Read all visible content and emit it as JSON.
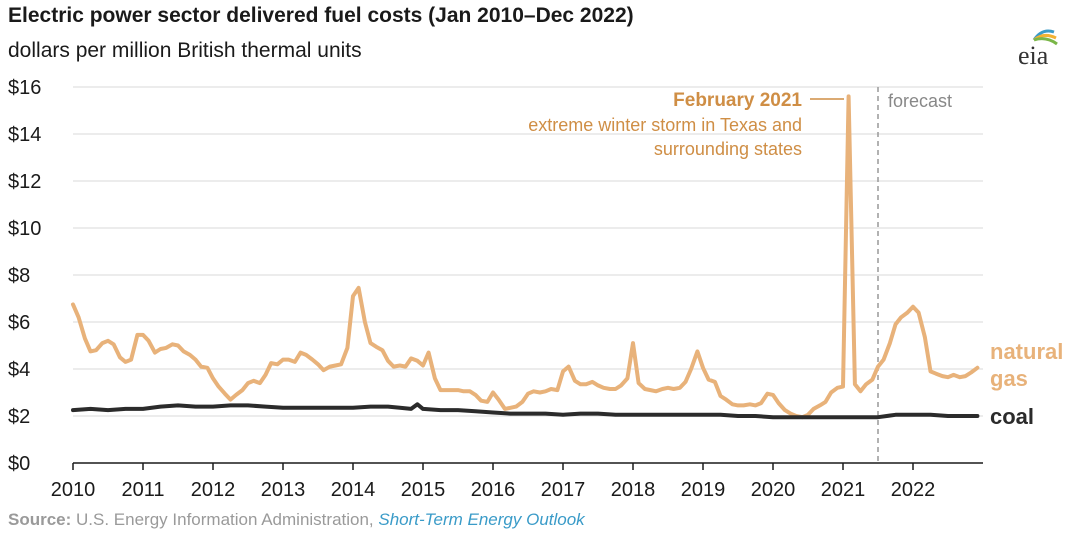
{
  "header": {
    "title": "Electric power sector delivered fuel costs (Jan 2010–Dec 2022)",
    "subtitle": "dollars per million British thermal units"
  },
  "logo": {
    "text": "eia",
    "icon": "eia-logo-icon"
  },
  "source": {
    "label": "Source:",
    "text": " U.S. Energy Information Administration, ",
    "link": "Short-Term Energy Outlook"
  },
  "colors": {
    "natural_gas": "#e8b27a",
    "coal": "#2b2b2b",
    "annotation": "#cf8e45",
    "grid": "#d9d9d9",
    "forecast_line": "#999999",
    "axis": "#1a1a1a"
  },
  "chart_data": {
    "type": "line",
    "ylim": [
      0,
      16
    ],
    "xlim": [
      2010,
      2023
    ],
    "y_ticks": [
      "$0",
      "$2",
      "$4",
      "$6",
      "$8",
      "$10",
      "$12",
      "$14",
      "$16"
    ],
    "x_ticks": [
      "2010",
      "2011",
      "2012",
      "2013",
      "2014",
      "2015",
      "2016",
      "2017",
      "2018",
      "2019",
      "2020",
      "2021",
      "2022"
    ],
    "grid": true,
    "forecast_start": 2021.5,
    "forecast_label": "forecast",
    "annotation": {
      "title": "February 2021",
      "line1": "extreme winter storm in Texas and",
      "line2": "surrounding states",
      "x": 2021.1,
      "y": 15.6
    },
    "series": [
      {
        "name": "natural gas",
        "label_line1": "natural",
        "label_line2": "gas",
        "points": [
          [
            2010.0,
            6.75
          ],
          [
            2010.08,
            6.2
          ],
          [
            2010.17,
            5.3
          ],
          [
            2010.25,
            4.75
          ],
          [
            2010.33,
            4.8
          ],
          [
            2010.42,
            5.1
          ],
          [
            2010.5,
            5.2
          ],
          [
            2010.58,
            5.05
          ],
          [
            2010.67,
            4.5
          ],
          [
            2010.75,
            4.3
          ],
          [
            2010.83,
            4.4
          ],
          [
            2010.92,
            5.45
          ],
          [
            2011.0,
            5.45
          ],
          [
            2011.08,
            5.2
          ],
          [
            2011.17,
            4.7
          ],
          [
            2011.25,
            4.85
          ],
          [
            2011.33,
            4.9
          ],
          [
            2011.42,
            5.05
          ],
          [
            2011.5,
            5.0
          ],
          [
            2011.58,
            4.75
          ],
          [
            2011.67,
            4.6
          ],
          [
            2011.75,
            4.4
          ],
          [
            2011.83,
            4.1
          ],
          [
            2011.92,
            4.05
          ],
          [
            2012.0,
            3.6
          ],
          [
            2012.08,
            3.25
          ],
          [
            2012.17,
            2.95
          ],
          [
            2012.25,
            2.7
          ],
          [
            2012.33,
            2.9
          ],
          [
            2012.42,
            3.1
          ],
          [
            2012.5,
            3.4
          ],
          [
            2012.58,
            3.5
          ],
          [
            2012.67,
            3.4
          ],
          [
            2012.75,
            3.75
          ],
          [
            2012.83,
            4.25
          ],
          [
            2012.92,
            4.2
          ],
          [
            2013.0,
            4.4
          ],
          [
            2013.08,
            4.4
          ],
          [
            2013.17,
            4.3
          ],
          [
            2013.25,
            4.7
          ],
          [
            2013.33,
            4.6
          ],
          [
            2013.42,
            4.4
          ],
          [
            2013.5,
            4.2
          ],
          [
            2013.58,
            3.95
          ],
          [
            2013.67,
            4.1
          ],
          [
            2013.75,
            4.15
          ],
          [
            2013.83,
            4.2
          ],
          [
            2013.92,
            4.9
          ],
          [
            2014.0,
            7.1
          ],
          [
            2014.08,
            7.45
          ],
          [
            2014.17,
            6.0
          ],
          [
            2014.25,
            5.1
          ],
          [
            2014.33,
            4.95
          ],
          [
            2014.42,
            4.8
          ],
          [
            2014.5,
            4.35
          ],
          [
            2014.58,
            4.1
          ],
          [
            2014.67,
            4.15
          ],
          [
            2014.75,
            4.1
          ],
          [
            2014.83,
            4.45
          ],
          [
            2014.92,
            4.35
          ],
          [
            2015.0,
            4.15
          ],
          [
            2015.08,
            4.7
          ],
          [
            2015.17,
            3.6
          ],
          [
            2015.25,
            3.1
          ],
          [
            2015.33,
            3.1
          ],
          [
            2015.42,
            3.1
          ],
          [
            2015.5,
            3.1
          ],
          [
            2015.58,
            3.05
          ],
          [
            2015.67,
            3.05
          ],
          [
            2015.75,
            2.9
          ],
          [
            2015.83,
            2.65
          ],
          [
            2015.92,
            2.6
          ],
          [
            2016.0,
            3.0
          ],
          [
            2016.08,
            2.7
          ],
          [
            2016.17,
            2.3
          ],
          [
            2016.25,
            2.35
          ],
          [
            2016.33,
            2.4
          ],
          [
            2016.42,
            2.6
          ],
          [
            2016.5,
            2.95
          ],
          [
            2016.58,
            3.05
          ],
          [
            2016.67,
            3.0
          ],
          [
            2016.75,
            3.05
          ],
          [
            2016.83,
            3.15
          ],
          [
            2016.92,
            3.1
          ],
          [
            2017.0,
            3.9
          ],
          [
            2017.08,
            4.1
          ],
          [
            2017.17,
            3.5
          ],
          [
            2017.25,
            3.35
          ],
          [
            2017.33,
            3.35
          ],
          [
            2017.42,
            3.45
          ],
          [
            2017.5,
            3.3
          ],
          [
            2017.58,
            3.2
          ],
          [
            2017.67,
            3.15
          ],
          [
            2017.75,
            3.15
          ],
          [
            2017.83,
            3.3
          ],
          [
            2017.92,
            3.6
          ],
          [
            2018.0,
            5.1
          ],
          [
            2018.08,
            3.4
          ],
          [
            2018.17,
            3.15
          ],
          [
            2018.25,
            3.1
          ],
          [
            2018.33,
            3.05
          ],
          [
            2018.42,
            3.15
          ],
          [
            2018.5,
            3.2
          ],
          [
            2018.58,
            3.15
          ],
          [
            2018.67,
            3.2
          ],
          [
            2018.75,
            3.45
          ],
          [
            2018.83,
            4.0
          ],
          [
            2018.92,
            4.75
          ],
          [
            2019.0,
            4.05
          ],
          [
            2019.08,
            3.55
          ],
          [
            2019.17,
            3.45
          ],
          [
            2019.25,
            2.85
          ],
          [
            2019.33,
            2.7
          ],
          [
            2019.42,
            2.5
          ],
          [
            2019.5,
            2.45
          ],
          [
            2019.58,
            2.45
          ],
          [
            2019.67,
            2.5
          ],
          [
            2019.75,
            2.45
          ],
          [
            2019.83,
            2.55
          ],
          [
            2019.92,
            2.95
          ],
          [
            2020.0,
            2.9
          ],
          [
            2020.08,
            2.55
          ],
          [
            2020.17,
            2.25
          ],
          [
            2020.25,
            2.1
          ],
          [
            2020.33,
            2.0
          ],
          [
            2020.42,
            1.95
          ],
          [
            2020.5,
            2.05
          ],
          [
            2020.58,
            2.3
          ],
          [
            2020.67,
            2.45
          ],
          [
            2020.75,
            2.6
          ],
          [
            2020.83,
            3.0
          ],
          [
            2020.92,
            3.2
          ],
          [
            2021.0,
            3.25
          ],
          [
            2021.08,
            15.6
          ],
          [
            2021.17,
            3.35
          ],
          [
            2021.25,
            3.05
          ],
          [
            2021.33,
            3.35
          ],
          [
            2021.42,
            3.55
          ],
          [
            2021.5,
            4.1
          ],
          [
            2021.58,
            4.4
          ],
          [
            2021.67,
            5.1
          ],
          [
            2021.75,
            5.9
          ],
          [
            2021.83,
            6.2
          ],
          [
            2021.92,
            6.4
          ],
          [
            2022.0,
            6.65
          ],
          [
            2022.08,
            6.4
          ],
          [
            2022.17,
            5.35
          ],
          [
            2022.25,
            3.9
          ],
          [
            2022.33,
            3.8
          ],
          [
            2022.42,
            3.7
          ],
          [
            2022.5,
            3.65
          ],
          [
            2022.58,
            3.75
          ],
          [
            2022.67,
            3.65
          ],
          [
            2022.75,
            3.7
          ],
          [
            2022.83,
            3.85
          ],
          [
            2022.92,
            4.05
          ]
        ]
      },
      {
        "name": "coal",
        "label_line1": "coal",
        "label_line2": "",
        "points": [
          [
            2010.0,
            2.25
          ],
          [
            2010.25,
            2.3
          ],
          [
            2010.5,
            2.25
          ],
          [
            2010.75,
            2.3
          ],
          [
            2011.0,
            2.3
          ],
          [
            2011.25,
            2.4
          ],
          [
            2011.5,
            2.45
          ],
          [
            2011.75,
            2.4
          ],
          [
            2012.0,
            2.4
          ],
          [
            2012.25,
            2.45
          ],
          [
            2012.5,
            2.45
          ],
          [
            2012.75,
            2.4
          ],
          [
            2013.0,
            2.35
          ],
          [
            2013.25,
            2.35
          ],
          [
            2013.5,
            2.35
          ],
          [
            2013.75,
            2.35
          ],
          [
            2014.0,
            2.35
          ],
          [
            2014.25,
            2.4
          ],
          [
            2014.5,
            2.4
          ],
          [
            2014.67,
            2.35
          ],
          [
            2014.83,
            2.3
          ],
          [
            2014.92,
            2.5
          ],
          [
            2015.0,
            2.3
          ],
          [
            2015.25,
            2.25
          ],
          [
            2015.5,
            2.25
          ],
          [
            2015.75,
            2.2
          ],
          [
            2016.0,
            2.15
          ],
          [
            2016.25,
            2.1
          ],
          [
            2016.5,
            2.1
          ],
          [
            2016.75,
            2.1
          ],
          [
            2017.0,
            2.05
          ],
          [
            2017.25,
            2.1
          ],
          [
            2017.5,
            2.1
          ],
          [
            2017.75,
            2.05
          ],
          [
            2018.0,
            2.05
          ],
          [
            2018.25,
            2.05
          ],
          [
            2018.5,
            2.05
          ],
          [
            2018.75,
            2.05
          ],
          [
            2019.0,
            2.05
          ],
          [
            2019.25,
            2.05
          ],
          [
            2019.5,
            2.0
          ],
          [
            2019.75,
            2.0
          ],
          [
            2020.0,
            1.95
          ],
          [
            2020.25,
            1.95
          ],
          [
            2020.5,
            1.95
          ],
          [
            2020.75,
            1.95
          ],
          [
            2021.0,
            1.95
          ],
          [
            2021.25,
            1.95
          ],
          [
            2021.5,
            1.95
          ],
          [
            2021.75,
            2.05
          ],
          [
            2022.0,
            2.05
          ],
          [
            2022.25,
            2.05
          ],
          [
            2022.5,
            2.0
          ],
          [
            2022.75,
            2.0
          ],
          [
            2022.92,
            2.0
          ]
        ]
      }
    ]
  }
}
